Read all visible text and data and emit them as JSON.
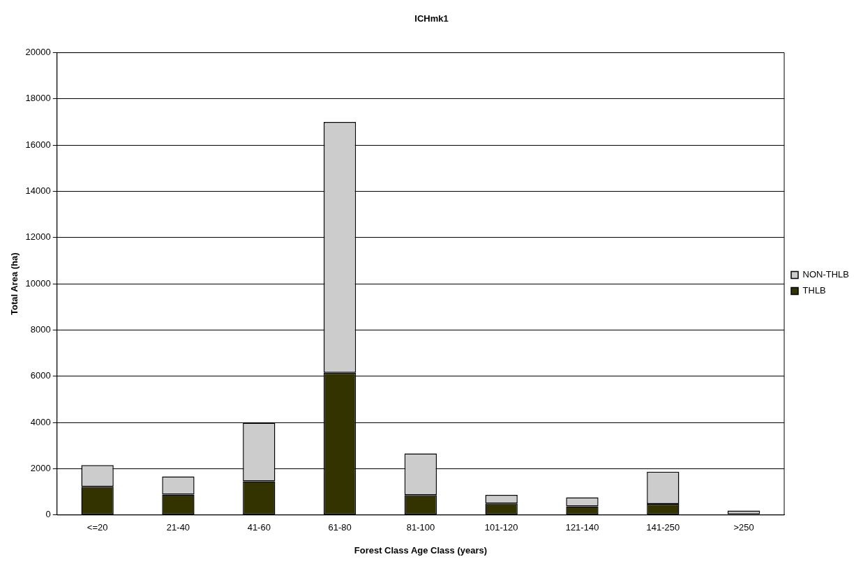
{
  "chart_data": {
    "type": "bar",
    "title": "ICHmk1",
    "xlabel": "Forest Class Age Class (years)",
    "ylabel": "Total Area (ha)",
    "categories": [
      "<=20",
      "21-40",
      "41-60",
      "61-80",
      "81-100",
      "101-120",
      "121-140",
      "141-250",
      ">250"
    ],
    "stacked": true,
    "series": [
      {
        "name": "THLB",
        "color": "#333300",
        "values": [
          1220,
          880,
          1460,
          6150,
          860,
          500,
          370,
          480,
          30
        ]
      },
      {
        "name": "NON-THLB",
        "color": "#cccccc",
        "values": [
          940,
          790,
          2530,
          10850,
          1800,
          370,
          390,
          1390,
          160
        ]
      }
    ],
    "ylim": [
      0,
      20000
    ],
    "yticks": [
      0,
      2000,
      4000,
      6000,
      8000,
      10000,
      12000,
      14000,
      16000,
      18000,
      20000
    ],
    "grid": "y",
    "legend": "right"
  }
}
